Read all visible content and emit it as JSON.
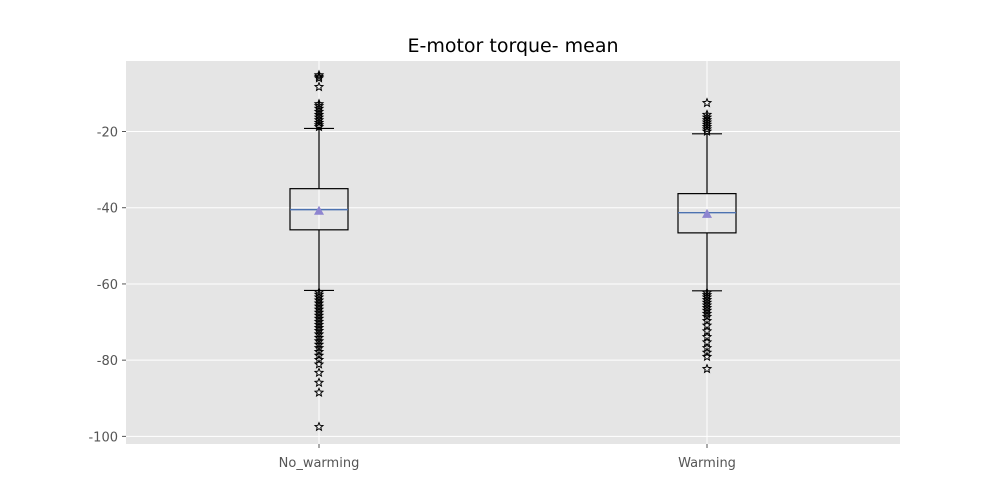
{
  "chart_data": {
    "type": "box",
    "title": "E-motor torque- mean",
    "xlabel": "",
    "ylabel": "",
    "ylim": [
      -102,
      -1.5
    ],
    "yticks": [
      -20,
      -40,
      -60,
      -80,
      -100
    ],
    "categories": [
      "No_warming",
      "Warming"
    ],
    "grid": true,
    "boxes": [
      {
        "name": "No_warming",
        "whisker_low": -61.7,
        "q1": -45.8,
        "median": -40.5,
        "q3": -35.0,
        "whisker_high": -19.2,
        "mean": -40.8,
        "outliers": [
          -5.2,
          -5.6,
          -6.0,
          -8.3,
          -12.8,
          -13.3,
          -14.0,
          -14.8,
          -15.6,
          -16.3,
          -17.0,
          -17.7,
          -18.3,
          -18.8,
          -62.2,
          -62.8,
          -63.5,
          -64.3,
          -65.1,
          -65.9,
          -66.7,
          -67.5,
          -68.3,
          -69.1,
          -69.9,
          -70.7,
          -71.5,
          -72.3,
          -73.2,
          -74.1,
          -75.0,
          -75.9,
          -76.8,
          -77.8,
          -78.8,
          -79.9,
          -81.1,
          -83.3,
          -85.9,
          -88.5,
          -97.5
        ]
      },
      {
        "name": "Warming",
        "whisker_low": -61.8,
        "q1": -46.6,
        "median": -41.3,
        "q3": -36.3,
        "whisker_high": -20.6,
        "mean": -41.6,
        "outliers": [
          -12.5,
          -15.6,
          -16.3,
          -17.0,
          -17.6,
          -18.2,
          -18.8,
          -19.4,
          -20.0,
          -62.3,
          -62.9,
          -63.5,
          -64.2,
          -64.9,
          -65.6,
          -66.3,
          -67.0,
          -67.8,
          -68.6,
          -69.7,
          -70.9,
          -72.4,
          -73.9,
          -75.3,
          -76.8,
          -78.0,
          -79.1,
          -82.3
        ]
      }
    ],
    "colors": {
      "plot_background": "#e5e5e5",
      "grid": "#ffffff",
      "box": "#000000",
      "median": "#4c72b0",
      "mean_marker": "#8e85d0",
      "outlier_marker": "star"
    }
  }
}
